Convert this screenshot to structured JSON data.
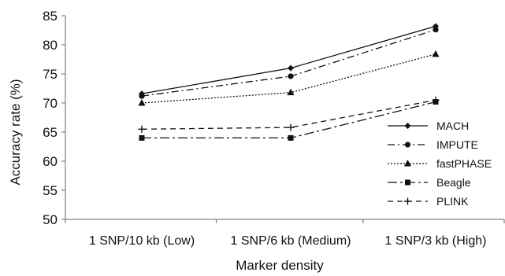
{
  "chart_data": {
    "type": "line",
    "xlabel": "Marker density",
    "ylabel": "Accuracy rate (%)",
    "categories": [
      "1 SNP/10 kb (Low)",
      "1 SNP/6 kb (Medium)",
      "1 SNP/3 kb (High)"
    ],
    "ylim": [
      50,
      85
    ],
    "yticks": [
      50,
      55,
      60,
      65,
      70,
      75,
      80,
      85
    ],
    "grid": false,
    "legend_position": "bottom-right",
    "series": [
      {
        "name": "MACH",
        "values": [
          71.6,
          76.0,
          83.2
        ],
        "marker": "diamond",
        "dash": "solid"
      },
      {
        "name": "IMPUTE",
        "values": [
          71.2,
          74.6,
          82.6
        ],
        "marker": "circle",
        "dash": "dash-dot"
      },
      {
        "name": "fastPHASE",
        "values": [
          70.0,
          71.8,
          78.4
        ],
        "marker": "triangle",
        "dash": "dotted"
      },
      {
        "name": "Beagle",
        "values": [
          64.0,
          64.0,
          70.2
        ],
        "marker": "square",
        "dash": "long-dash-dot"
      },
      {
        "name": "PLINK",
        "values": [
          65.5,
          65.8,
          70.5
        ],
        "marker": "plus",
        "dash": "dashed"
      }
    ]
  }
}
